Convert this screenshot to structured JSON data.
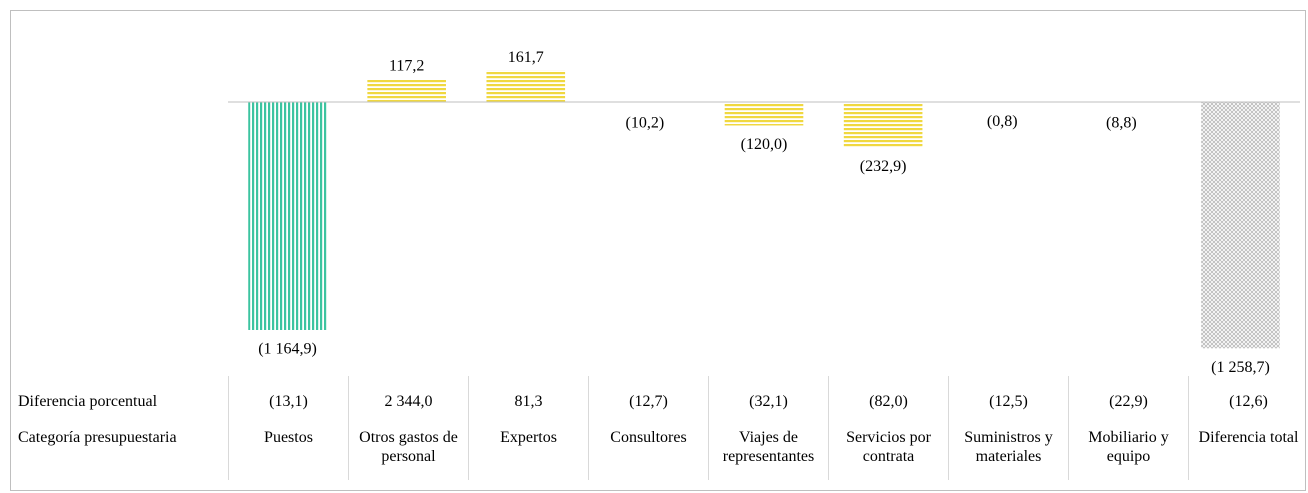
{
  "chart_data": {
    "type": "bar",
    "categories": [
      "Puestos",
      "Otros gastos de personal",
      "Expertos",
      "Consultores",
      "Viajes de representantes",
      "Servicios por contrata",
      "Suministros y materiales",
      "Mobiliario y equipo",
      "Diferencia total"
    ],
    "values": [
      -1164.9,
      117.2,
      161.7,
      -10.2,
      -120.0,
      -232.9,
      -0.8,
      -8.8,
      -1258.7
    ],
    "value_labels": [
      "(1 164,9)",
      "117,2",
      "161,7",
      "(10,2)",
      "(120,0)",
      "(232,9)",
      "(0,8)",
      "(8,8)",
      "(1 258,7)"
    ],
    "colors": [
      "#3cc4a0",
      "#f0d840",
      "#f0d840",
      "#f0d840",
      "#f0d840",
      "#f0d840",
      "#f0d840",
      "#f0d840",
      "#b8b8b8"
    ],
    "patterns": [
      "vertical",
      "horizontal",
      "horizontal",
      "horizontal",
      "horizontal",
      "horizontal",
      "horizontal",
      "horizontal",
      "crosshatch"
    ],
    "ylim": [
      -1400,
      470
    ],
    "row_labels": [
      "Diferencia porcentual",
      "Categoría presupuestaria"
    ],
    "percent_differences": [
      "(13,1)",
      "2 344,0",
      "81,3",
      "(12,7)",
      "(32,1)",
      "(82,0)",
      "(12,5)",
      "(22,9)",
      "(12,6)"
    ]
  }
}
